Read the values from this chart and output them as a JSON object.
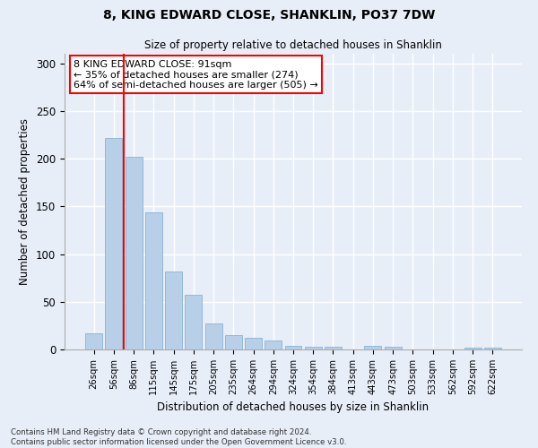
{
  "title": "8, KING EDWARD CLOSE, SHANKLIN, PO37 7DW",
  "subtitle": "Size of property relative to detached houses in Shanklin",
  "xlabel": "Distribution of detached houses by size in Shanklin",
  "ylabel": "Number of detached properties",
  "bar_color": "#b8cfe8",
  "bar_edge_color": "#7aaad0",
  "categories": [
    "26sqm",
    "56sqm",
    "86sqm",
    "115sqm",
    "145sqm",
    "175sqm",
    "205sqm",
    "235sqm",
    "264sqm",
    "294sqm",
    "324sqm",
    "354sqm",
    "384sqm",
    "413sqm",
    "443sqm",
    "473sqm",
    "503sqm",
    "533sqm",
    "562sqm",
    "592sqm",
    "622sqm"
  ],
  "values": [
    17,
    222,
    202,
    144,
    82,
    57,
    27,
    15,
    12,
    9,
    4,
    3,
    3,
    0,
    4,
    3,
    0,
    0,
    0,
    2,
    2
  ],
  "property_label": "8 KING EDWARD CLOSE: 91sqm",
  "stat_line1": "← 35% of detached houses are smaller (274)",
  "stat_line2": "64% of semi-detached houses are larger (505) →",
  "vline_pos": 1.5,
  "ylim": [
    0,
    310
  ],
  "yticks": [
    0,
    50,
    100,
    150,
    200,
    250,
    300
  ],
  "footnote1": "Contains HM Land Registry data © Crown copyright and database right 2024.",
  "footnote2": "Contains public sector information licensed under the Open Government Licence v3.0.",
  "background_color": "#e8eef8",
  "grid_color": "#ffffff"
}
